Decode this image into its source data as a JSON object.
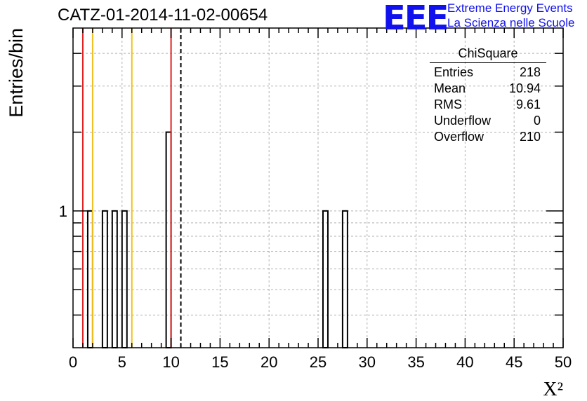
{
  "chart_data": {
    "type": "bar",
    "title": "CATZ-01-2014-11-02-00654",
    "xlabel": "X²",
    "ylabel": "Entries/bin",
    "x_ticks": [
      "0",
      "5",
      "10",
      "15",
      "20",
      "25",
      "30",
      "35",
      "40",
      "45",
      "50"
    ],
    "y_ticks": [
      "1"
    ],
    "xlim": [
      0,
      50
    ],
    "ylim": [
      0.3,
      5
    ],
    "y_scale": "log",
    "grid": true,
    "bin_width": 0.5,
    "bins": [
      {
        "x": 1.5,
        "value": 1
      },
      {
        "x": 3.0,
        "value": 1
      },
      {
        "x": 4.0,
        "value": 1
      },
      {
        "x": 5.0,
        "value": 1
      },
      {
        "x": 9.5,
        "value": 2
      },
      {
        "x": 25.5,
        "value": 1
      },
      {
        "x": 27.5,
        "value": 1
      }
    ],
    "vertical_lines": [
      {
        "x": 1.0,
        "color": "#dd2222",
        "style": "solid"
      },
      {
        "x": 2.0,
        "color": "#f0c020",
        "style": "solid"
      },
      {
        "x": 6.0,
        "color": "#f0c020",
        "style": "solid"
      },
      {
        "x": 10.0,
        "color": "#dd2222",
        "style": "solid"
      },
      {
        "x": 11.0,
        "color": "#000000",
        "style": "dashed"
      }
    ],
    "stats_box": {
      "title": "ChiSquare",
      "rows": [
        {
          "label": "Entries",
          "value": "218"
        },
        {
          "label": "Mean",
          "value": "10.94"
        },
        {
          "label": "RMS",
          "value": "9.61"
        },
        {
          "label": "Underflow",
          "value": "0"
        },
        {
          "label": "Overflow",
          "value": "210"
        }
      ]
    }
  },
  "logo": {
    "text": "EEE",
    "line1": "Extreme Energy Events",
    "line2": "La Scienza nelle Scuole",
    "color": "#1111ee"
  }
}
